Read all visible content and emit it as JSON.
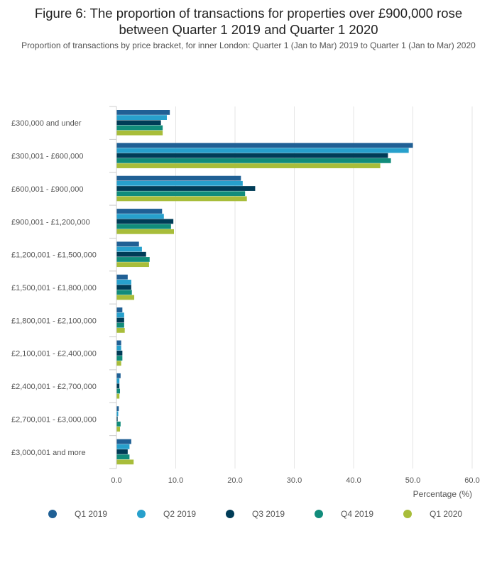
{
  "header": {
    "title": "Figure 6: The proportion of transactions for properties over £900,000 rose between Quarter 1 2019 and Quarter 1 2020",
    "subtitle": "Proportion of transactions by price bracket, for inner London: Quarter 1 (Jan to Mar) 2019 to Quarter 1 (Jan to Mar) 2020"
  },
  "chart_data": {
    "type": "bar",
    "orientation": "horizontal",
    "title": "Figure 6: The proportion of transactions for properties over £900,000 rose between Quarter 1 2019 and Quarter 1 2020",
    "subtitle": "Proportion of transactions by price bracket, for inner London: Quarter 1 (Jan to Mar) 2019 to Quarter 1 (Jan to Mar) 2020",
    "xlabel": "Percentage (%)",
    "ylabel": "",
    "xlim": [
      0,
      60
    ],
    "xticks": [
      "0.0",
      "10.0",
      "20.0",
      "30.0",
      "40.0",
      "50.0",
      "60.0"
    ],
    "grid": true,
    "legend_position": "bottom",
    "categories": [
      "£300,000 and under",
      "£300,001 - £600,000",
      "£600,001 - £900,000",
      "£900,001 - £1,200,000",
      "£1,200,001 - £1,500,000",
      "£1,500,001 - £1,800,000",
      "£1,800,001 - £2,100,000",
      "£2,100,001 - £2,400,000",
      "£2,400,001 - £2,700,000",
      "£2,700,001 - £3,000,000",
      "£3,000,001 and more"
    ],
    "series": [
      {
        "name": "Q1 2019",
        "color": "#206095",
        "values": [
          9.0,
          50.0,
          21.0,
          7.7,
          3.8,
          1.9,
          1.0,
          0.8,
          0.7,
          0.4,
          2.5
        ]
      },
      {
        "name": "Q2 2019",
        "color": "#27a0cc",
        "values": [
          8.5,
          49.3,
          21.3,
          8.0,
          4.3,
          2.5,
          1.3,
          0.8,
          0.5,
          0.3,
          2.2
        ]
      },
      {
        "name": "Q3 2019",
        "color": "#003c57",
        "values": [
          7.5,
          45.8,
          23.4,
          9.6,
          5.0,
          2.5,
          1.3,
          1.0,
          0.5,
          0.2,
          1.9
        ]
      },
      {
        "name": "Q4 2019",
        "color": "#118c7b",
        "values": [
          7.8,
          46.3,
          21.7,
          9.2,
          5.6,
          2.6,
          1.3,
          1.0,
          0.6,
          0.7,
          2.2
        ]
      },
      {
        "name": "Q1 2020",
        "color": "#a8bd3a",
        "values": [
          7.8,
          44.5,
          22.0,
          9.7,
          5.5,
          3.0,
          1.4,
          0.8,
          0.5,
          0.6,
          2.9
        ]
      }
    ]
  }
}
